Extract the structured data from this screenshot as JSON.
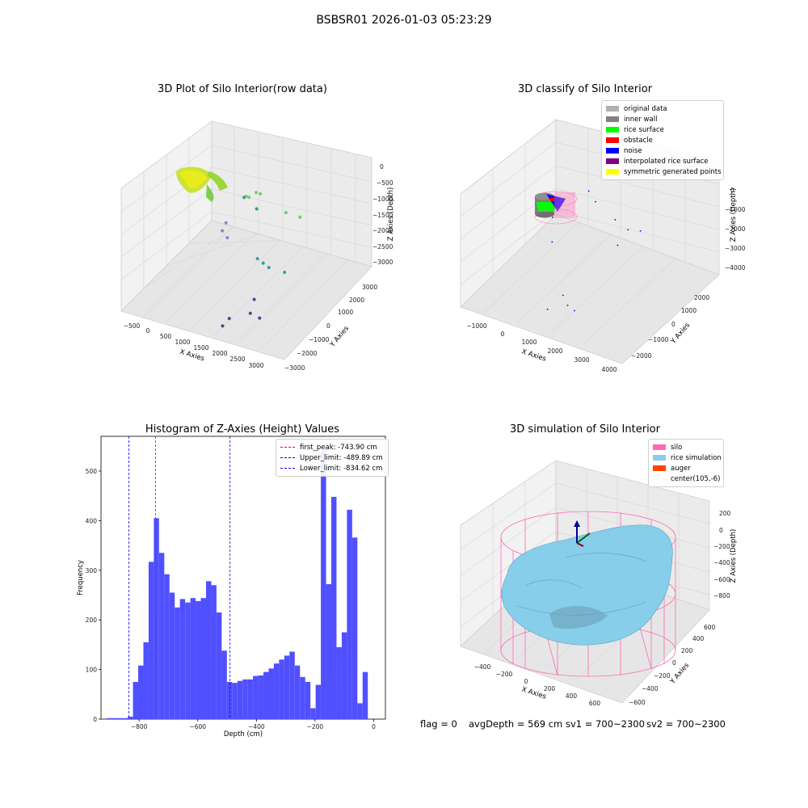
{
  "figure": {
    "suptitle": "BSBSR01 2026-01-03 05:23:29"
  },
  "chart_data": [
    {
      "type": "scatter",
      "title": "3D Plot of Silo Interior(row data)",
      "xlabel": "X Axies",
      "ylabel": "Y Axies",
      "zlabel": "Z Axies (Depth)",
      "xticks": [
        "−500",
        "0",
        "500",
        "1000",
        "1500",
        "2000",
        "2500",
        "3000"
      ],
      "yticks": [
        "−3000",
        "−2000",
        "−1000",
        "0",
        "1000",
        "2000",
        "3000"
      ],
      "zticks": [
        "0",
        "−500",
        "−1000",
        "−1500",
        "−2000",
        "−2500",
        "−3000"
      ],
      "xlim": [
        -600,
        3200
      ],
      "ylim": [
        -3000,
        3000
      ],
      "zlim": [
        -3400,
        0
      ],
      "points": [
        {
          "x": 800,
          "y": 1300,
          "z": -1500
        },
        {
          "x": 900,
          "y": 1200,
          "z": -1450
        },
        {
          "x": 1050,
          "y": 1250,
          "z": -1280
        },
        {
          "x": 1200,
          "y": 1100,
          "z": -1200
        },
        {
          "x": 1150,
          "y": 1000,
          "z": -1600
        },
        {
          "x": 750,
          "y": 1300,
          "z": -1550
        },
        {
          "x": 1900,
          "y": 800,
          "z": -1350
        },
        {
          "x": 2300,
          "y": 600,
          "z": -1250
        },
        {
          "x": 400,
          "y": 1100,
          "z": -2300
        },
        {
          "x": 350,
          "y": 1000,
          "z": -2500
        },
        {
          "x": 500,
          "y": 900,
          "z": -2600
        },
        {
          "x": 1800,
          "y": -800,
          "z": -2000
        },
        {
          "x": 1950,
          "y": -850,
          "z": -2050
        },
        {
          "x": 2100,
          "y": -900,
          "z": -2100
        },
        {
          "x": 2500,
          "y": -1000,
          "z": -2050
        },
        {
          "x": 1900,
          "y": -1300,
          "z": -2900
        },
        {
          "x": 1950,
          "y": -1700,
          "z": -3100
        },
        {
          "x": 2200,
          "y": -1800,
          "z": -3100
        },
        {
          "x": 1600,
          "y": -2100,
          "z": -3200
        },
        {
          "x": 1550,
          "y": -2400,
          "z": -3300
        }
      ]
    },
    {
      "type": "scatter",
      "title": "3D classify of Silo Interior",
      "xlabel": "X Axies",
      "ylabel": "Y Axies",
      "zlabel": "Z Axies (Depth)",
      "xticks": [
        "−1000",
        "0",
        "1000",
        "2000",
        "3000",
        "4000"
      ],
      "yticks": [
        "−2000",
        "−1000",
        "0",
        "1000",
        "2000"
      ],
      "zticks": [
        "0",
        "−1000",
        "−2000",
        "−3000",
        "−4000"
      ],
      "xlim": [
        -1200,
        4200
      ],
      "ylim": [
        -2200,
        2200
      ],
      "zlim": [
        -4200,
        0
      ],
      "legend": [
        {
          "label": "original data",
          "color": "#b0b0b0"
        },
        {
          "label": "inner wall",
          "color": "#808080"
        },
        {
          "label": "rice surface",
          "color": "#00ff00"
        },
        {
          "label": "obstacle",
          "color": "#ff0000"
        },
        {
          "label": "noise",
          "color": "#0000ff"
        },
        {
          "label": "interpolated rice surface",
          "color": "#800080"
        },
        {
          "label": "symmetric generated points",
          "color": "#ffff00"
        }
      ],
      "noise_points": [
        {
          "x": 1200,
          "y": 400,
          "z": -1000
        },
        {
          "x": 1500,
          "y": 300,
          "z": -1200
        },
        {
          "x": 2300,
          "y": 100,
          "z": -1400
        },
        {
          "x": 2800,
          "y": 0,
          "z": -1500
        },
        {
          "x": 2600,
          "y": -200,
          "z": -2000
        },
        {
          "x": 500,
          "y": -300,
          "z": -1700
        },
        {
          "x": 700,
          "y": -600,
          "z": -2300
        },
        {
          "x": 1500,
          "y": -1200,
          "z": -3500
        },
        {
          "x": 1800,
          "y": -1400,
          "z": -3600
        },
        {
          "x": 2100,
          "y": -1500,
          "z": -3600
        },
        {
          "x": 1200,
          "y": -1500,
          "z": -3900
        },
        {
          "x": 3000,
          "y": 300,
          "z": -1700
        }
      ]
    },
    {
      "type": "bar",
      "title": "Histogram of Z-Axies (Height) Values",
      "xlabel": "Depth (cm)",
      "ylabel": "Frequency",
      "xlim": [
        -930,
        40
      ],
      "ylim": [
        0,
        570
      ],
      "xticks": [
        "−800",
        "−600",
        "−400",
        "−200",
        "0"
      ],
      "xtick_values": [
        -800,
        -600,
        -400,
        -200,
        0
      ],
      "yticks": [
        "0",
        "100",
        "200",
        "300",
        "400",
        "500"
      ],
      "ytick_values": [
        0,
        100,
        200,
        300,
        400,
        500
      ],
      "bin_start": -910,
      "bin_width": 17.8,
      "values": [
        2,
        2,
        2,
        2,
        5,
        75,
        108,
        155,
        317,
        405,
        335,
        292,
        255,
        225,
        242,
        235,
        244,
        238,
        244,
        278,
        270,
        215,
        138,
        75,
        73,
        77,
        80,
        80,
        87,
        88,
        95,
        102,
        112,
        120,
        128,
        136,
        108,
        85,
        75,
        22,
        69,
        540,
        272,
        448,
        145,
        175,
        422,
        366,
        32,
        95
      ],
      "bar_color": "#5050ff",
      "vlines": [
        {
          "label": "first_peak: -743.90 cm",
          "x": -743.9,
          "color": "#ff0000"
        },
        {
          "label": "Upper_limit: -489.89 cm",
          "x": -489.89,
          "color": "#0000ff"
        },
        {
          "label": "Lower_limit: -834.62 cm",
          "x": -834.62,
          "color": "#0000ff"
        }
      ]
    },
    {
      "type": "scatter",
      "title": "3D simulation of Silo Interior",
      "xlabel": "X Axies",
      "ylabel": "Y Axies",
      "zlabel": "Z Axies (Depth)",
      "xticks": [
        "−400",
        "−200",
        "0",
        "200",
        "400",
        "600"
      ],
      "yticks": [
        "−600",
        "−400",
        "−200",
        "0",
        "200",
        "400",
        "600"
      ],
      "zticks": [
        "200",
        "0",
        "−200",
        "−400",
        "−600",
        "−800"
      ],
      "xlim": [
        -600,
        700
      ],
      "ylim": [
        -700,
        700
      ],
      "zlim": [
        -950,
        300
      ],
      "legend": [
        {
          "label": "silo",
          "color": "#ff69b4"
        },
        {
          "label": "rice simulation",
          "color": "#87ceeb"
        },
        {
          "label": "auger",
          "color": "#ff4500"
        },
        {
          "label": "center(105,-6)",
          "color": ""
        }
      ]
    }
  ],
  "status": {
    "flag": "flag = 0",
    "avg_depth": "avgDepth = 569 cm",
    "sv1": "sv1 = 700~2300",
    "sv2": "sv2 = 700~2300"
  }
}
